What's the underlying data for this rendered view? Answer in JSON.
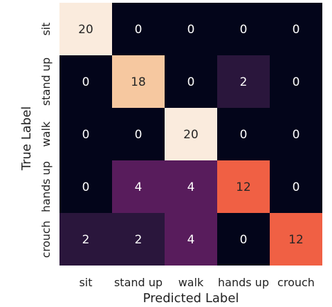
{
  "chart_data": {
    "type": "heatmap",
    "title": "",
    "xlabel": "Predicted Label",
    "ylabel": "True Label",
    "x_categories": [
      "sit",
      "stand up",
      "walk",
      "hands up",
      "crouch"
    ],
    "y_categories": [
      "sit",
      "stand up",
      "walk",
      "hands up",
      "crouch"
    ],
    "values": [
      [
        20,
        0,
        0,
        0,
        0
      ],
      [
        0,
        18,
        0,
        2,
        0
      ],
      [
        0,
        0,
        20,
        0,
        0
      ],
      [
        0,
        4,
        4,
        12,
        0
      ],
      [
        2,
        2,
        4,
        0,
        12
      ]
    ],
    "value_range": [
      0,
      20
    ],
    "colormap": "rocket",
    "colorbar": false,
    "grid": false
  }
}
